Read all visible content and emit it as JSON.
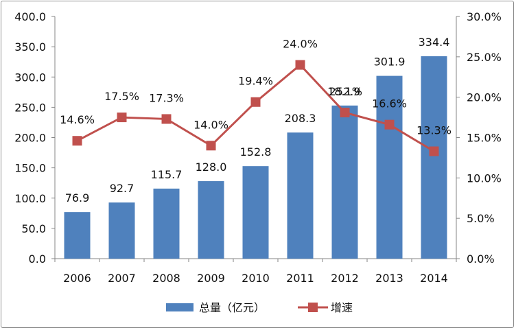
{
  "chart_data": {
    "type": "bar+line",
    "title": "",
    "categories": [
      "2006",
      "2007",
      "2008",
      "2009",
      "2010",
      "2011",
      "2012",
      "2013",
      "2014"
    ],
    "series": [
      {
        "name": "总量（亿元）",
        "type": "bar",
        "axis": "left",
        "color": "#4f81bd",
        "values": [
          76.9,
          92.7,
          115.7,
          128.0,
          152.8,
          208.3,
          252.9,
          301.9,
          334.4
        ],
        "labels": [
          "76.9",
          "92.7",
          "115.7",
          "128.0",
          "152.8",
          "208.3",
          "252.9",
          "301.9",
          "334.4"
        ]
      },
      {
        "name": "增速",
        "type": "line",
        "axis": "right",
        "color": "#c0504d",
        "values": [
          14.6,
          17.5,
          17.3,
          14.0,
          19.4,
          24.0,
          18.1,
          16.6,
          13.3
        ],
        "labels": [
          "14.6%",
          "17.5%",
          "17.3%",
          "14.0%",
          "19.4%",
          "24.0%",
          "18.1%",
          "16.6%",
          "13.3%"
        ]
      }
    ],
    "y_left": {
      "ylim": [
        0,
        400
      ],
      "ticks": [
        0,
        50,
        100,
        150,
        200,
        250,
        300,
        350,
        400
      ],
      "tick_labels": [
        "0.0",
        "50.0",
        "100.0",
        "150.0",
        "200.0",
        "250.0",
        "300.0",
        "350.0",
        "400.0"
      ]
    },
    "y_right": {
      "ylim": [
        0,
        30
      ],
      "ticks": [
        0,
        5,
        10,
        15,
        20,
        25,
        30
      ],
      "tick_labels": [
        "0.0%",
        "5.0%",
        "10.0%",
        "15.0%",
        "20.0%",
        "25.0%",
        "30.0%"
      ]
    },
    "grid": false,
    "legend": "bottom"
  }
}
